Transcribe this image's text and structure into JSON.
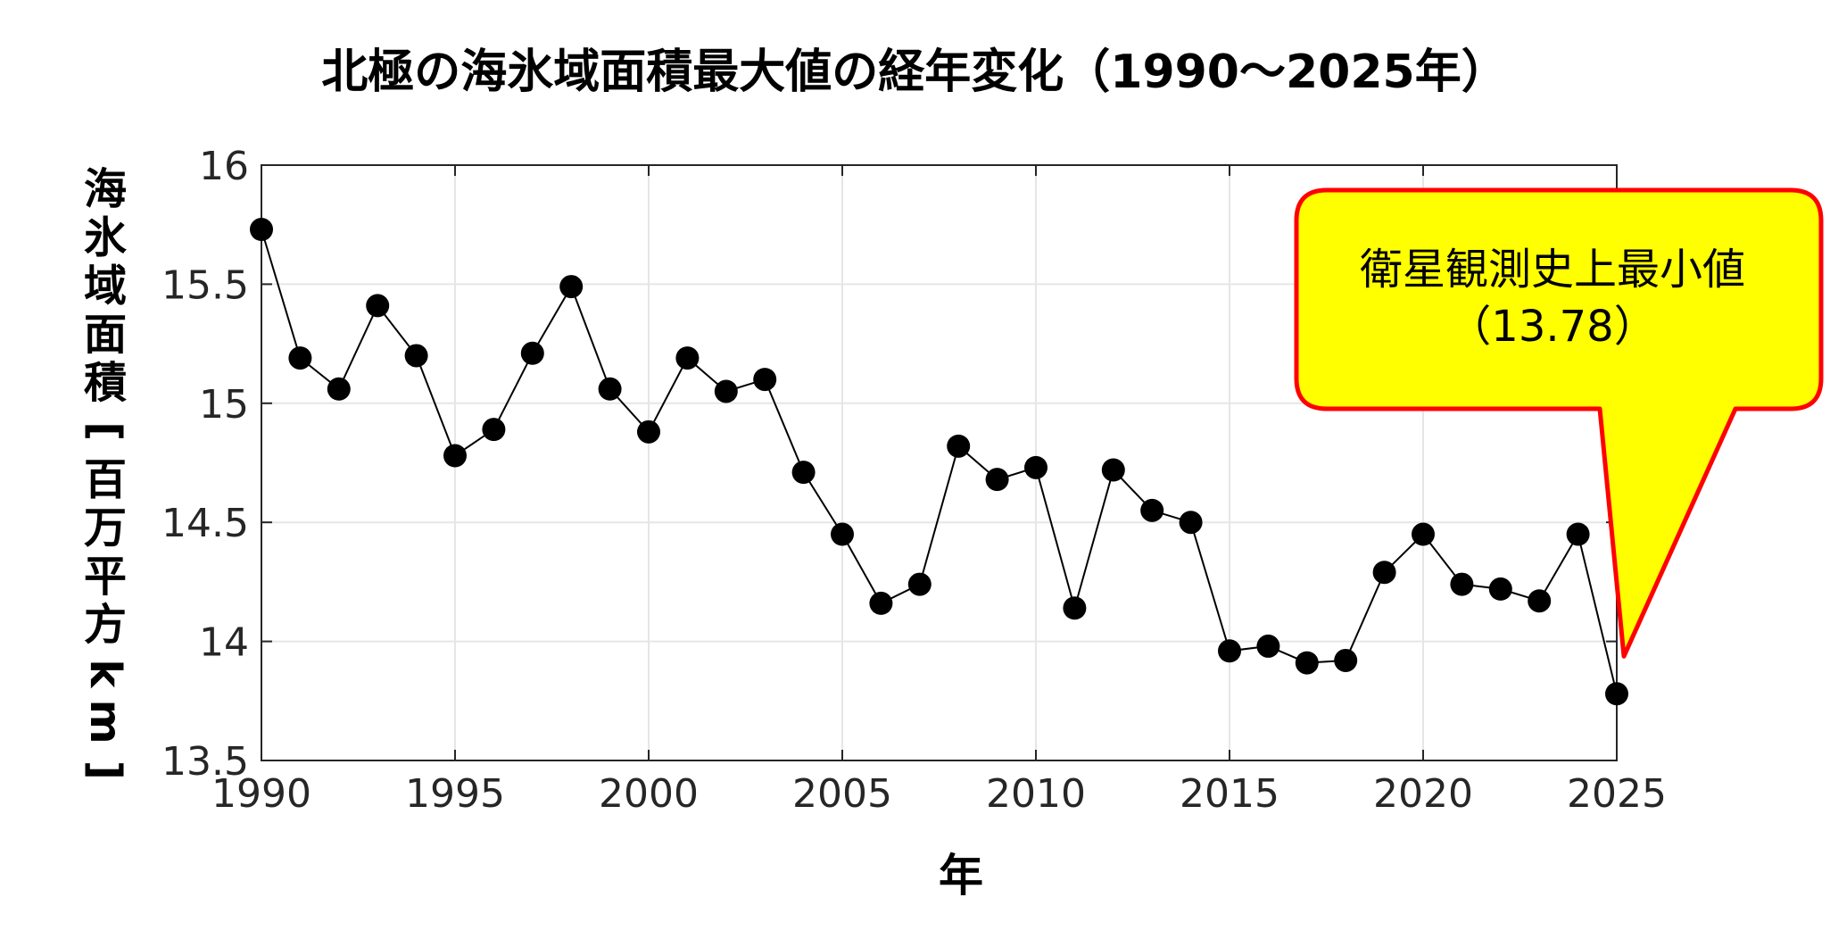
{
  "chart_data": {
    "type": "line",
    "title": "北極の海氷域面積最大値の経年変化（1990～2025年）",
    "xlabel": "年",
    "ylabel": "海氷域面積[百万平方km]",
    "xlim": [
      1990,
      2025
    ],
    "ylim": [
      13.5,
      16
    ],
    "grid": true,
    "x_ticks": [
      1990,
      1995,
      2000,
      2005,
      2010,
      2015,
      2020,
      2025
    ],
    "y_ticks": [
      13.5,
      14,
      14.5,
      15,
      15.5,
      16
    ],
    "x": [
      1990,
      1991,
      1992,
      1993,
      1994,
      1995,
      1996,
      1997,
      1998,
      1999,
      2000,
      2001,
      2002,
      2003,
      2004,
      2005,
      2006,
      2007,
      2008,
      2009,
      2010,
      2011,
      2012,
      2013,
      2014,
      2015,
      2016,
      2017,
      2018,
      2019,
      2020,
      2021,
      2022,
      2023,
      2024,
      2025
    ],
    "values": [
      15.73,
      15.19,
      15.06,
      15.41,
      15.2,
      14.78,
      14.89,
      15.21,
      15.49,
      15.06,
      14.88,
      15.19,
      15.05,
      15.1,
      14.71,
      14.45,
      14.16,
      14.24,
      14.82,
      14.68,
      14.73,
      14.14,
      14.72,
      14.55,
      14.5,
      13.96,
      13.98,
      13.91,
      13.92,
      14.29,
      14.45,
      14.24,
      14.22,
      14.17,
      14.45,
      13.78
    ],
    "annotation": {
      "line1": "衛星観測史上最小値",
      "line2": "（13.78）",
      "target_x": 2025,
      "target_y": 13.78,
      "fill": "#ffff00",
      "border": "#ff0000"
    },
    "colors": {
      "line": "#000000",
      "marker": "#000000",
      "grid": "#e6e6e6",
      "axis": "#262626"
    }
  }
}
